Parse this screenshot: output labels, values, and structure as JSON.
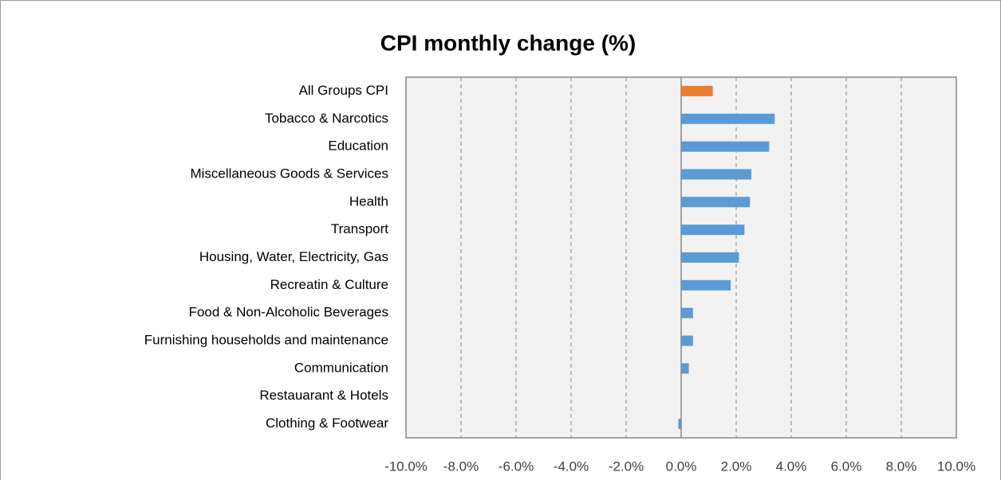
{
  "chart_data": {
    "type": "hbar",
    "title": "CPI monthly change (%)",
    "categories": [
      "All Groups CPI",
      "Tobacco & Narcotics",
      "Education",
      "Miscellaneous Goods & Services",
      "Health",
      "Transport",
      "Housing, Water, Electricity, Gas",
      "Recreatin & Culture",
      "Food & Non-Alcoholic Beverages",
      "Furnishing households and maintenance",
      "Communication",
      "Restauarant & Hotels",
      "Clothing & Footwear"
    ],
    "values": [
      1.15,
      3.4,
      3.2,
      2.55,
      2.5,
      2.3,
      2.1,
      1.8,
      0.43,
      0.43,
      0.28,
      0,
      -0.1
    ],
    "colors": [
      "#ed7d31",
      "#5b9bd5",
      "#5b9bd5",
      "#5b9bd5",
      "#5b9bd5",
      "#5b9bd5",
      "#5b9bd5",
      "#5b9bd5",
      "#5b9bd5",
      "#5b9bd5",
      "#5b9bd5",
      "#5b9bd5",
      "#5b9bd5"
    ],
    "xlim": [
      -10,
      10
    ],
    "xticks": [
      {
        "value": -10,
        "label": "-10.0%"
      },
      {
        "value": -8,
        "label": "-8.0%"
      },
      {
        "value": -6,
        "label": "-6.0%"
      },
      {
        "value": -4,
        "label": "-4.0%"
      },
      {
        "value": -2,
        "label": "-2.0%"
      },
      {
        "value": 0,
        "label": "0.0%"
      },
      {
        "value": 2,
        "label": "2.0%"
      },
      {
        "value": 4,
        "label": "4.0%"
      },
      {
        "value": 6,
        "label": "6.0%"
      },
      {
        "value": 8,
        "label": "8.0%"
      },
      {
        "value": 10,
        "label": "10.0%"
      }
    ],
    "grid": true
  }
}
